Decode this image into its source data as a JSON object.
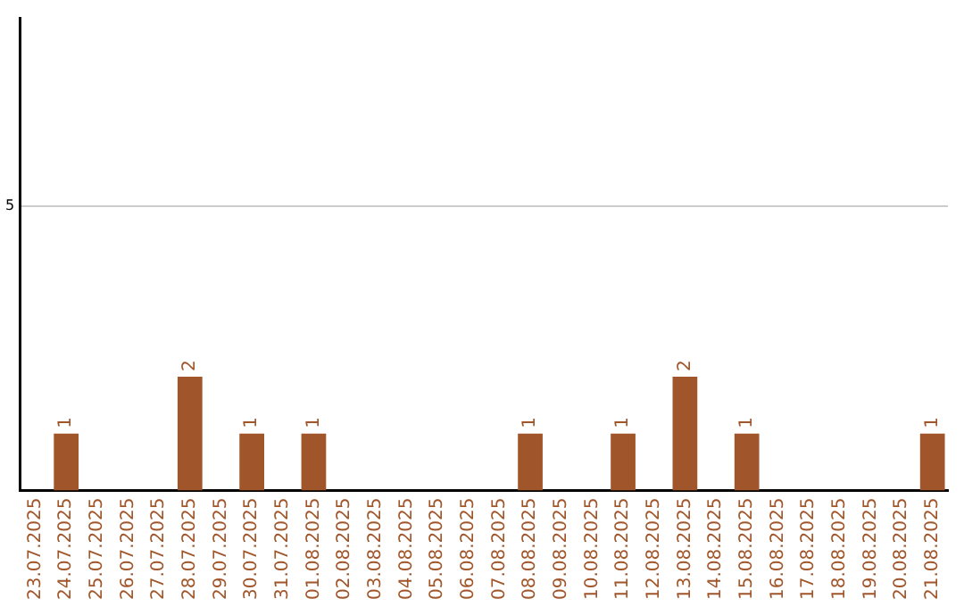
{
  "chart_data": {
    "type": "bar",
    "categories": [
      "23.07.2025",
      "24.07.2025",
      "25.07.2025",
      "26.07.2025",
      "27.07.2025",
      "28.07.2025",
      "29.07.2025",
      "30.07.2025",
      "31.07.2025",
      "01.08.2025",
      "02.08.2025",
      "03.08.2025",
      "04.08.2025",
      "05.08.2025",
      "06.08.2025",
      "07.08.2025",
      "08.08.2025",
      "09.08.2025",
      "10.08.2025",
      "11.08.2025",
      "12.08.2025",
      "13.08.2025",
      "14.08.2025",
      "15.08.2025",
      "16.08.2025",
      "17.08.2025",
      "18.08.2025",
      "19.08.2025",
      "20.08.2025",
      "21.08.2025"
    ],
    "values": [
      0,
      1,
      0,
      0,
      0,
      2,
      0,
      1,
      0,
      1,
      0,
      0,
      0,
      0,
      0,
      0,
      1,
      0,
      0,
      1,
      0,
      2,
      0,
      1,
      0,
      0,
      0,
      0,
      0,
      1
    ],
    "value_labels": [
      null,
      "1",
      null,
      null,
      null,
      "2",
      null,
      "1",
      null,
      "1",
      null,
      null,
      null,
      null,
      null,
      null,
      "1",
      null,
      null,
      "1",
      null,
      "2",
      null,
      "1",
      null,
      null,
      null,
      null,
      null,
      "1"
    ],
    "color": "#a0562a",
    "ylim": [
      0,
      8.3
    ],
    "yticks": [
      5
    ],
    "grid": "y",
    "legend": false
  }
}
